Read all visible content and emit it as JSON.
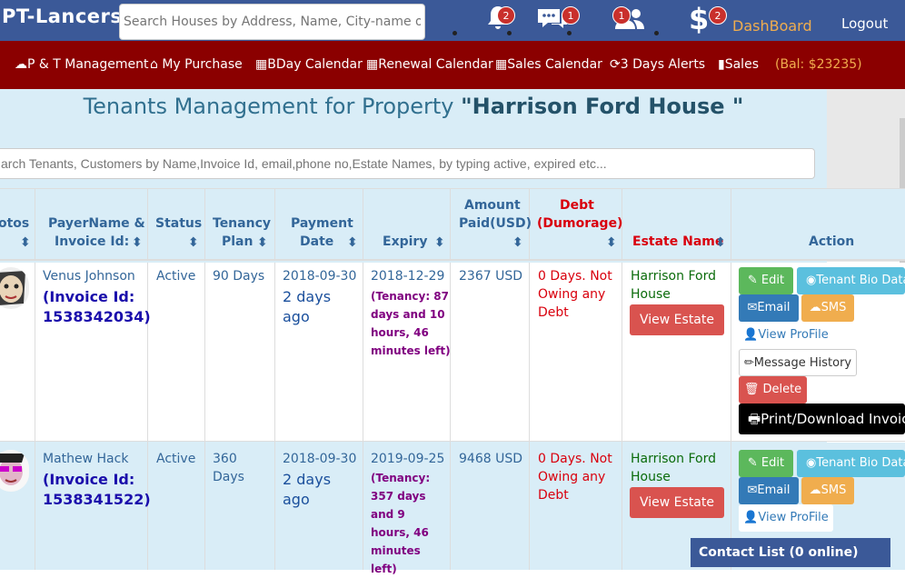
{
  "brand": "PT-Lancers",
  "top_search": {
    "placeholder": "Search Houses by Address, Name, City-name or S"
  },
  "notifications": {
    "bell": "2",
    "chat": "1",
    "users": "1",
    "dollar": "2"
  },
  "dashboard": "DashBoard",
  "logout": "Logout",
  "menu": {
    "pt": "P & T Management",
    "purchase": "My Purchase",
    "bday": "BDay Calendar",
    "renewal": "Renewal Calendar",
    "sales_cal": "Sales Calendar",
    "alerts": "3 Days Alerts",
    "sales": "Sales",
    "balance": "(Bal: $23235)"
  },
  "colors": {
    "brand": "#3b5998",
    "menu": "#8b0000",
    "accent": "#f0ad4e"
  },
  "page_title_prefix": "Tenants Management for Property ",
  "page_title_property": "\"Harrison Ford House \"",
  "tenant_search": {
    "placeholder": "arch Tenants, Customers by Name,Invoice Id, email,phone no,Estate Names, by typing active, expired etc..."
  },
  "headers": {
    "photos": "otos",
    "payer_1": "PayerName &",
    "payer_2": "Invoice Id:",
    "status": "Status",
    "tenancy_1": "Tenancy",
    "tenancy_2": "Plan",
    "payment_1": "Payment",
    "payment_2": "Date",
    "expiry": "Expiry",
    "amount_1": "Amount",
    "amount_2": "Paid(USD)",
    "debt_1": "Debt",
    "debt_2": "(Dumorage)",
    "estate": "Estate Name",
    "action": "Action"
  },
  "rows": [
    {
      "name": "Venus Johnson",
      "invoice": "(Invoice Id: 1538342034)",
      "status": "Active",
      "plan": "90 Days",
      "payment_date": "2018-09-30",
      "payment_ago": "2 days ago",
      "expiry": "2018-12-29",
      "tenancy_left": "(Tenancy: 87 days and 10 hours, 46 minutes left)",
      "amount": "2367 USD",
      "debt": "0 Days. Not Owing any Debt",
      "estate": "Harrison Ford House"
    },
    {
      "name": "Mathew Hack",
      "invoice": "(Invoice Id: 1538341522)",
      "status": "Active",
      "plan": "360 Days",
      "payment_date": "2018-09-30",
      "payment_ago": "2 days ago",
      "expiry": "2019-09-25",
      "tenancy_left": "(Tenancy: 357 days and 9 hours, 46 minutes left)",
      "amount": "9468 USD",
      "debt": "0 Days. Not Owing any Debt",
      "estate": "Harrison Ford House"
    }
  ],
  "buttons": {
    "view_estate": "View Estate",
    "edit": "Edit",
    "bio": "Tenant Bio Data",
    "email": "Email",
    "sms": "SMS",
    "profile": "View ProFile",
    "history": "Message History",
    "delete": "Delete",
    "print": "Print/Download Invoice"
  },
  "contact_list": "Contact List (0 online)"
}
